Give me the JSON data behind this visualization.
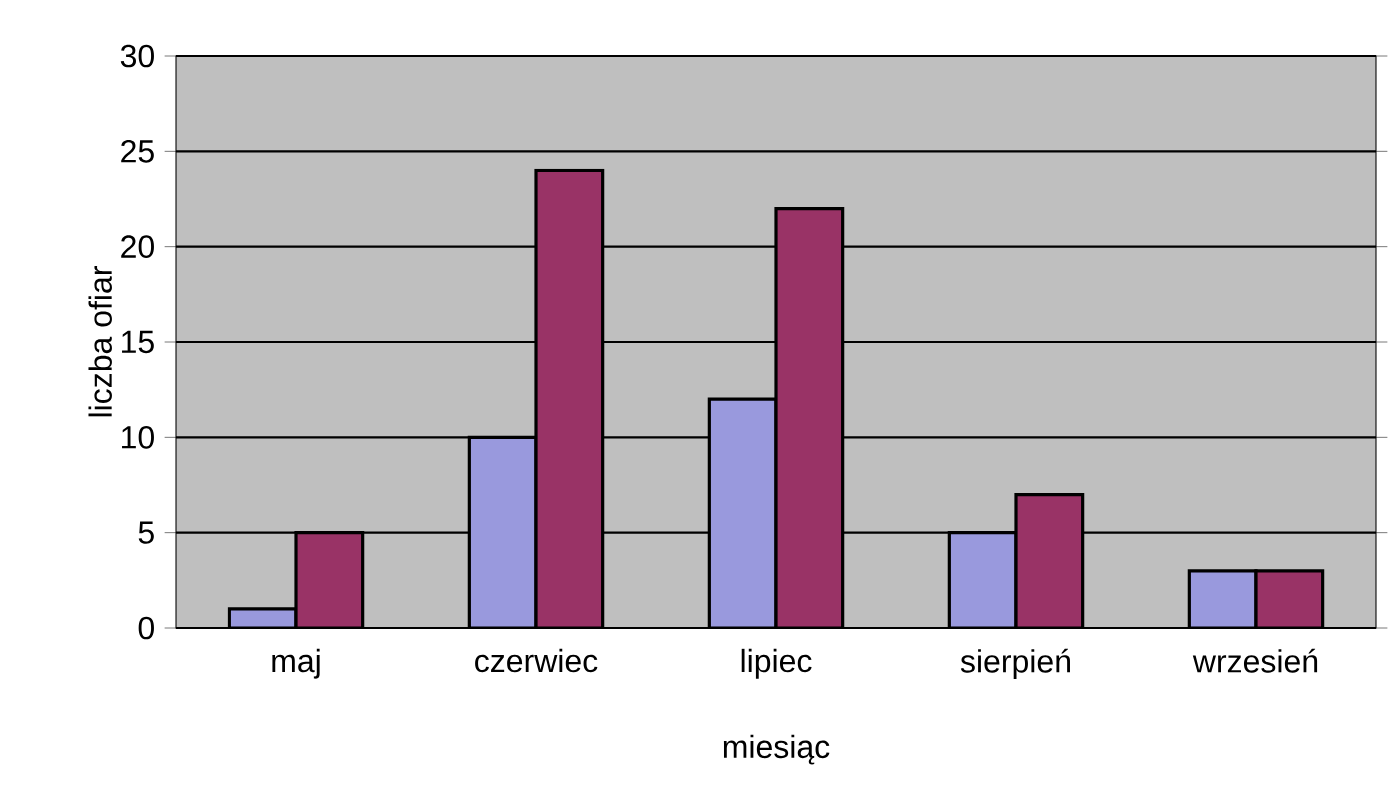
{
  "chart_data": {
    "type": "bar",
    "xlabel": "miesiąc",
    "ylabel": "liczba ofiar",
    "categories": [
      "maj",
      "czerwiec",
      "lipiec",
      "sierpień",
      "wrzesień"
    ],
    "series": [
      {
        "color": "#9999dd",
        "values": [
          1,
          10,
          12,
          5,
          3
        ]
      },
      {
        "color": "#993366",
        "values": [
          5,
          24,
          22,
          7,
          3
        ]
      }
    ],
    "ylim": [
      0,
      30
    ],
    "yticks": [
      0,
      5,
      10,
      15,
      20,
      25,
      30
    ],
    "grid": "y"
  }
}
